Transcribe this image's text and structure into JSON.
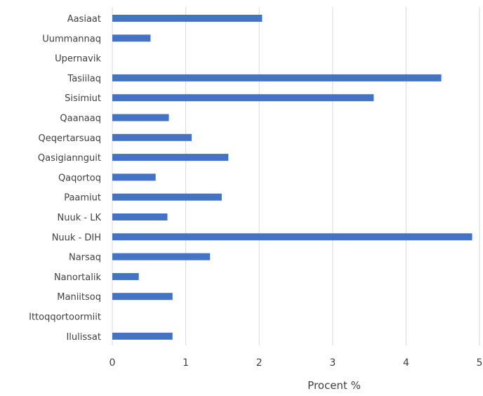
{
  "chart_data": {
    "type": "bar",
    "orientation": "horizontal",
    "categories": [
      "Aasiaat",
      "Uummannaq",
      "Upernavik",
      "Tasiilaq",
      "Sisimiut",
      "Qaanaaq",
      "Qeqertarsuaq",
      "Qasigiannguit",
      "Qaqortoq",
      "Paamiut",
      "Nuuk - LK",
      "Nuuk - DIH",
      "Narsaq",
      "Nanortalik",
      "Maniitsoq",
      "Ittoqqortoormiit",
      "Ilulissat"
    ],
    "values": [
      2.04,
      0.52,
      0,
      4.48,
      3.56,
      0.77,
      1.08,
      1.58,
      0.59,
      1.49,
      0.75,
      4.9,
      1.33,
      0.36,
      0.82,
      0,
      0.82
    ],
    "xlabel": "Procent %",
    "ylabel": "",
    "xlim": [
      0,
      5
    ],
    "x_ticks": [
      "0",
      "1",
      "2",
      "3",
      "4",
      "5"
    ],
    "grid": "vertical",
    "bar_color": "#4472C4",
    "grid_color": "#d9d9d9",
    "text_color": "#404040"
  }
}
